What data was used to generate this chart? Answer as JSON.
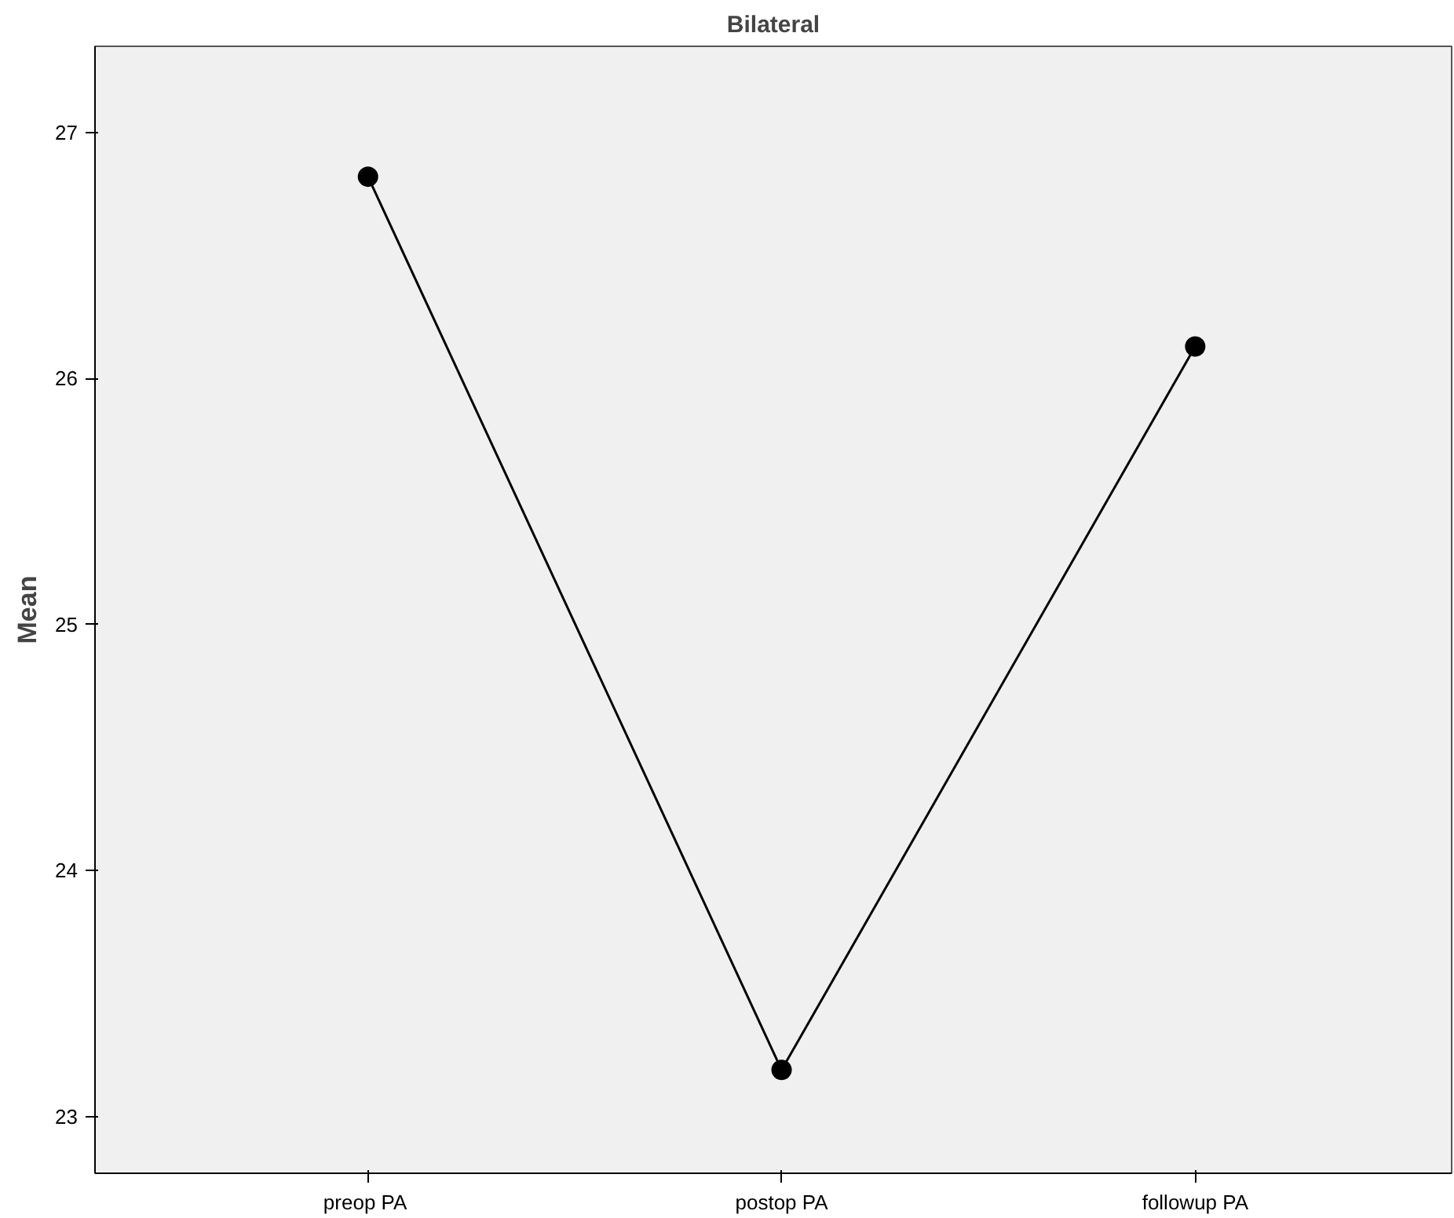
{
  "chart_data": {
    "type": "line",
    "title": "Bilateral",
    "ylabel": "Mean",
    "categories": [
      "preop  PA",
      "postop PA",
      "followup PA"
    ],
    "series": [
      {
        "color": "#000000",
        "values": [
          26.82,
          23.19,
          26.13
        ]
      }
    ],
    "ylim": [
      22.77,
      27.35
    ],
    "yticks": [
      23,
      24,
      25,
      26,
      27
    ],
    "grid": false,
    "marker": "circle",
    "line_style": "solid"
  }
}
